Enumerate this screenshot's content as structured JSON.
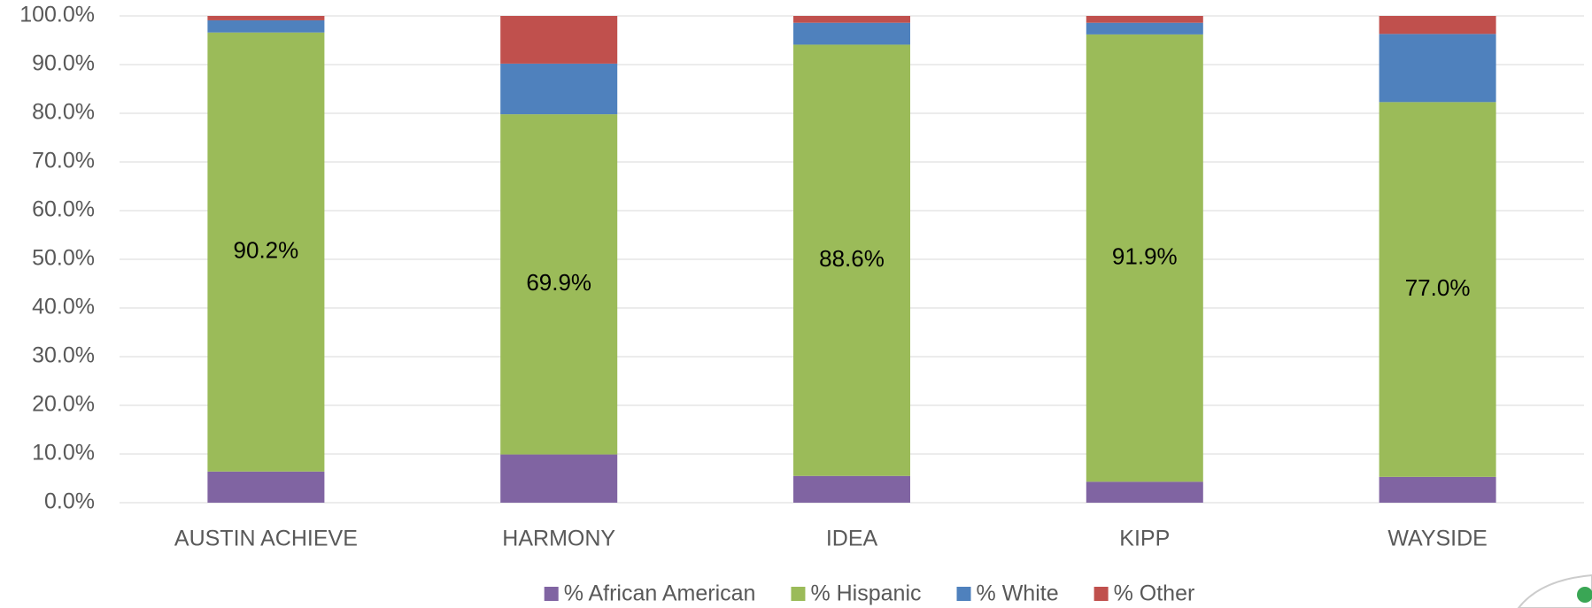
{
  "chart_data": {
    "type": "stacked_bar",
    "categories": [
      "AUSTIN ACHIEVE",
      "HARMONY",
      "IDEA",
      "KIPP",
      "WAYSIDE"
    ],
    "series": [
      {
        "name": "% African American",
        "color": "#8064a2",
        "values": [
          6.4,
          9.9,
          5.5,
          4.3,
          5.3
        ]
      },
      {
        "name": "% Hispanic",
        "color": "#9bbb59",
        "values": [
          90.2,
          69.9,
          88.6,
          91.9,
          77.0
        ],
        "value_labels": [
          "90.2%",
          "69.9%",
          "88.6%",
          "91.9%",
          "77.0%"
        ]
      },
      {
        "name": "% White",
        "color": "#4f81bd",
        "values": [
          2.5,
          10.4,
          4.5,
          2.4,
          14.0
        ]
      },
      {
        "name": "% Other",
        "color": "#c0504d",
        "values": [
          0.9,
          9.8,
          1.4,
          1.4,
          3.7
        ]
      }
    ],
    "ylim": [
      0,
      100
    ],
    "yticks": [
      {
        "value": 0,
        "label": "0.0%"
      },
      {
        "value": 10,
        "label": "10.0%"
      },
      {
        "value": 20,
        "label": "20.0%"
      },
      {
        "value": 30,
        "label": "30.0%"
      },
      {
        "value": 40,
        "label": "40.0%"
      },
      {
        "value": 50,
        "label": "50.0%"
      },
      {
        "value": 60,
        "label": "60.0%"
      },
      {
        "value": 70,
        "label": "70.0%"
      },
      {
        "value": 80,
        "label": "80.0%"
      },
      {
        "value": 90,
        "label": "90.0%"
      },
      {
        "value": 100,
        "label": "100.0%"
      }
    ],
    "grid": true,
    "legend": "bottom"
  }
}
